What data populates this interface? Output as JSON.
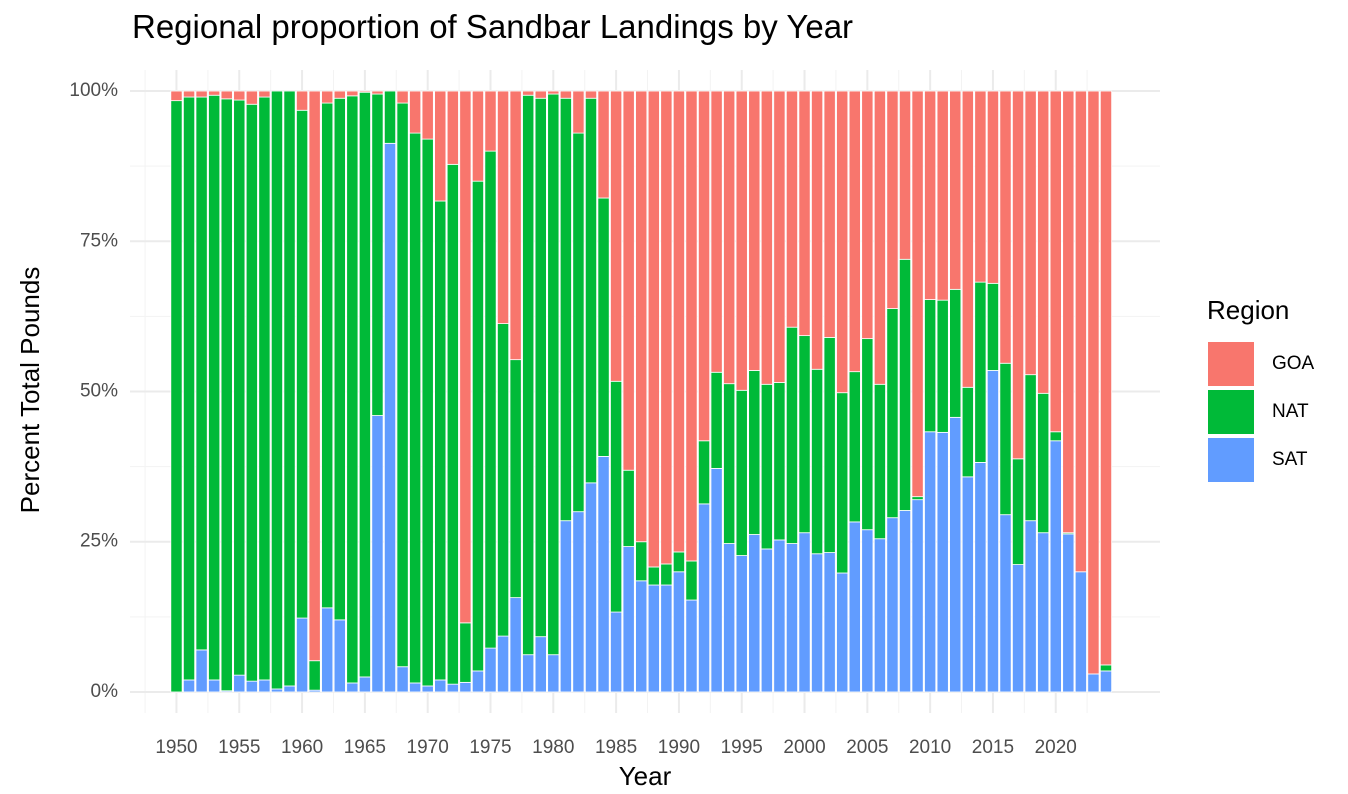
{
  "chart_data": {
    "type": "stacked_bar",
    "title": "Regional proportion of Sandbar Landings by Year",
    "x_label": "Year",
    "y_label": "Percent Total Pounds",
    "legend_title": "Region",
    "x": [
      1950,
      1951,
      1952,
      1953,
      1954,
      1955,
      1956,
      1957,
      1958,
      1959,
      1960,
      1961,
      1962,
      1963,
      1964,
      1965,
      1966,
      1967,
      1968,
      1969,
      1970,
      1971,
      1972,
      1973,
      1974,
      1975,
      1976,
      1977,
      1978,
      1979,
      1980,
      1981,
      1982,
      1983,
      1984,
      1985,
      1986,
      1987,
      1988,
      1989,
      1990,
      1991,
      1992,
      1993,
      1994,
      1995,
      1996,
      1997,
      1998,
      1999,
      2000,
      2001,
      2002,
      2003,
      2004,
      2005,
      2006,
      2007,
      2008,
      2009,
      2010,
      2011,
      2012,
      2013,
      2014,
      2015,
      2016,
      2017,
      2018,
      2019,
      2020,
      2021,
      2022,
      2023,
      2024
    ],
    "series": [
      {
        "name": "GOA",
        "color": "#f8766d",
        "values": [
          1.6,
          1,
          1,
          0.7,
          1.3,
          1.5,
          2.2,
          1,
          0,
          0,
          3.2,
          94.8,
          2,
          1.2,
          0.8,
          0.2,
          0.5,
          0,
          2,
          7,
          8,
          18.3,
          12.2,
          88.5,
          15,
          10,
          38.7,
          44.7,
          0.7,
          1.2,
          0.5,
          1.2,
          7,
          1.2,
          17.8,
          48.3,
          63.1,
          75,
          79.2,
          78.7,
          76.7,
          78.2,
          58.2,
          46.8,
          48.7,
          49.8,
          46.5,
          48.8,
          48.5,
          39.3,
          40.7,
          46.3,
          41,
          50.2,
          46.7,
          41.2,
          48.8,
          36.2,
          28,
          67.5,
          34.7,
          34.8,
          33,
          49.3,
          31.8,
          32,
          45.3,
          61.2,
          47.2,
          50.3,
          56.7,
          73.5,
          80,
          97,
          95.5
        ]
      },
      {
        "name": "NAT",
        "color": "#00ba38",
        "values": [
          98.4,
          97,
          92,
          97.3,
          98.5,
          95.7,
          96,
          97,
          99.5,
          99,
          84.5,
          4.9,
          84,
          86.8,
          97.7,
          97.3,
          53.5,
          8.7,
          93.8,
          91.5,
          91,
          79.7,
          86.5,
          9.9,
          81.5,
          82.7,
          52,
          39.6,
          93.1,
          89.6,
          93.3,
          70.3,
          63,
          64,
          43,
          38.4,
          12.7,
          6.5,
          3,
          3.5,
          3.3,
          6.5,
          10.5,
          16,
          26.6,
          27.5,
          27.3,
          27.4,
          26.2,
          36,
          32.8,
          30.7,
          35.8,
          30,
          25,
          31.8,
          25.7,
          34.8,
          41.8,
          0.5,
          22,
          22,
          21.3,
          14.9,
          30,
          14.5,
          25.2,
          17.6,
          24.3,
          23.2,
          1.5,
          0.2,
          0,
          0,
          1
        ]
      },
      {
        "name": "SAT",
        "color": "#619cff",
        "values": [
          0,
          2,
          7,
          2,
          0.2,
          2.8,
          1.8,
          2,
          0.5,
          1,
          12.3,
          0.3,
          14,
          12,
          1.5,
          2.5,
          46,
          91.3,
          4.2,
          1.5,
          1,
          2,
          1.3,
          1.6,
          3.5,
          7.3,
          9.3,
          15.7,
          6.2,
          9.2,
          6.2,
          28.5,
          30,
          34.8,
          39.2,
          13.3,
          24.2,
          18.5,
          17.8,
          17.8,
          20,
          15.3,
          31.3,
          37.2,
          24.7,
          22.7,
          26.2,
          23.8,
          25.3,
          24.7,
          26.5,
          23,
          23.2,
          19.8,
          28.3,
          27,
          25.5,
          29,
          30.2,
          32,
          43.3,
          43.2,
          45.7,
          35.8,
          38.2,
          53.5,
          29.5,
          21.2,
          28.5,
          26.5,
          41.8,
          26.3,
          20,
          3,
          3.5
        ]
      }
    ],
    "xlim": [
      1946.3,
      2028.3
    ],
    "xticks": [
      1950,
      1955,
      1960,
      1965,
      1970,
      1975,
      1980,
      1985,
      1990,
      1995,
      2000,
      2005,
      2010,
      2015,
      2020
    ],
    "ylim": [
      -3.5,
      103.5
    ],
    "yticks": [
      {
        "value": 0,
        "label": "0%"
      },
      {
        "value": 25,
        "label": "25%"
      },
      {
        "value": 50,
        "label": "50%"
      },
      {
        "value": 75,
        "label": "75%"
      },
      {
        "value": 100,
        "label": "100%"
      }
    ],
    "grid": true
  }
}
